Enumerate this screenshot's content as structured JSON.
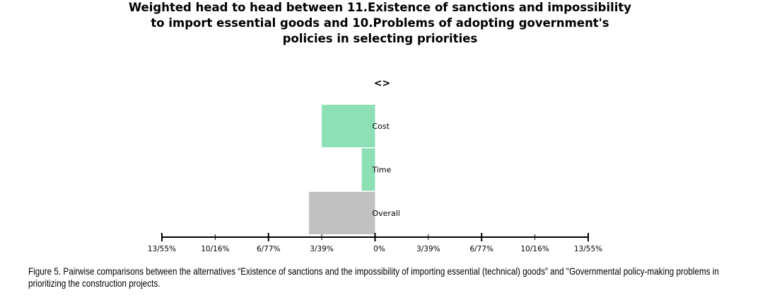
{
  "chart_data": {
    "type": "bar",
    "orientation": "horizontal",
    "title_lines": [
      "Weighted head to head between 11.Existence of sanctions and impossibility",
      "to import essential goods and 10.Problems of adopting government's",
      "policies in selecting priorities"
    ],
    "direction_marker": "<>",
    "categories": [
      "Cost",
      "Time",
      "Overall"
    ],
    "values": [
      -10.0,
      -2.5,
      -12.4
    ],
    "colors": [
      "#8de0b5",
      "#8de0b5",
      "#c1c1c1"
    ],
    "xlim": [
      -40,
      40
    ],
    "ticks": [
      -40,
      -30,
      -20,
      -10,
      0,
      10,
      20,
      30,
      40
    ],
    "tick_labels": [
      "13/55%",
      "10/16%",
      "6/77%",
      "3/39%",
      "0%",
      "3/39%",
      "6/77%",
      "10/16%",
      "13/55%"
    ]
  },
  "caption": {
    "label": "Figure 5.",
    "text": " Pairwise comparisons between the alternatives “Existence of sanctions and the impossibility of importing essential (technical) goods” and \"Governmental policy-making problems in prioritizing the construction projects."
  }
}
